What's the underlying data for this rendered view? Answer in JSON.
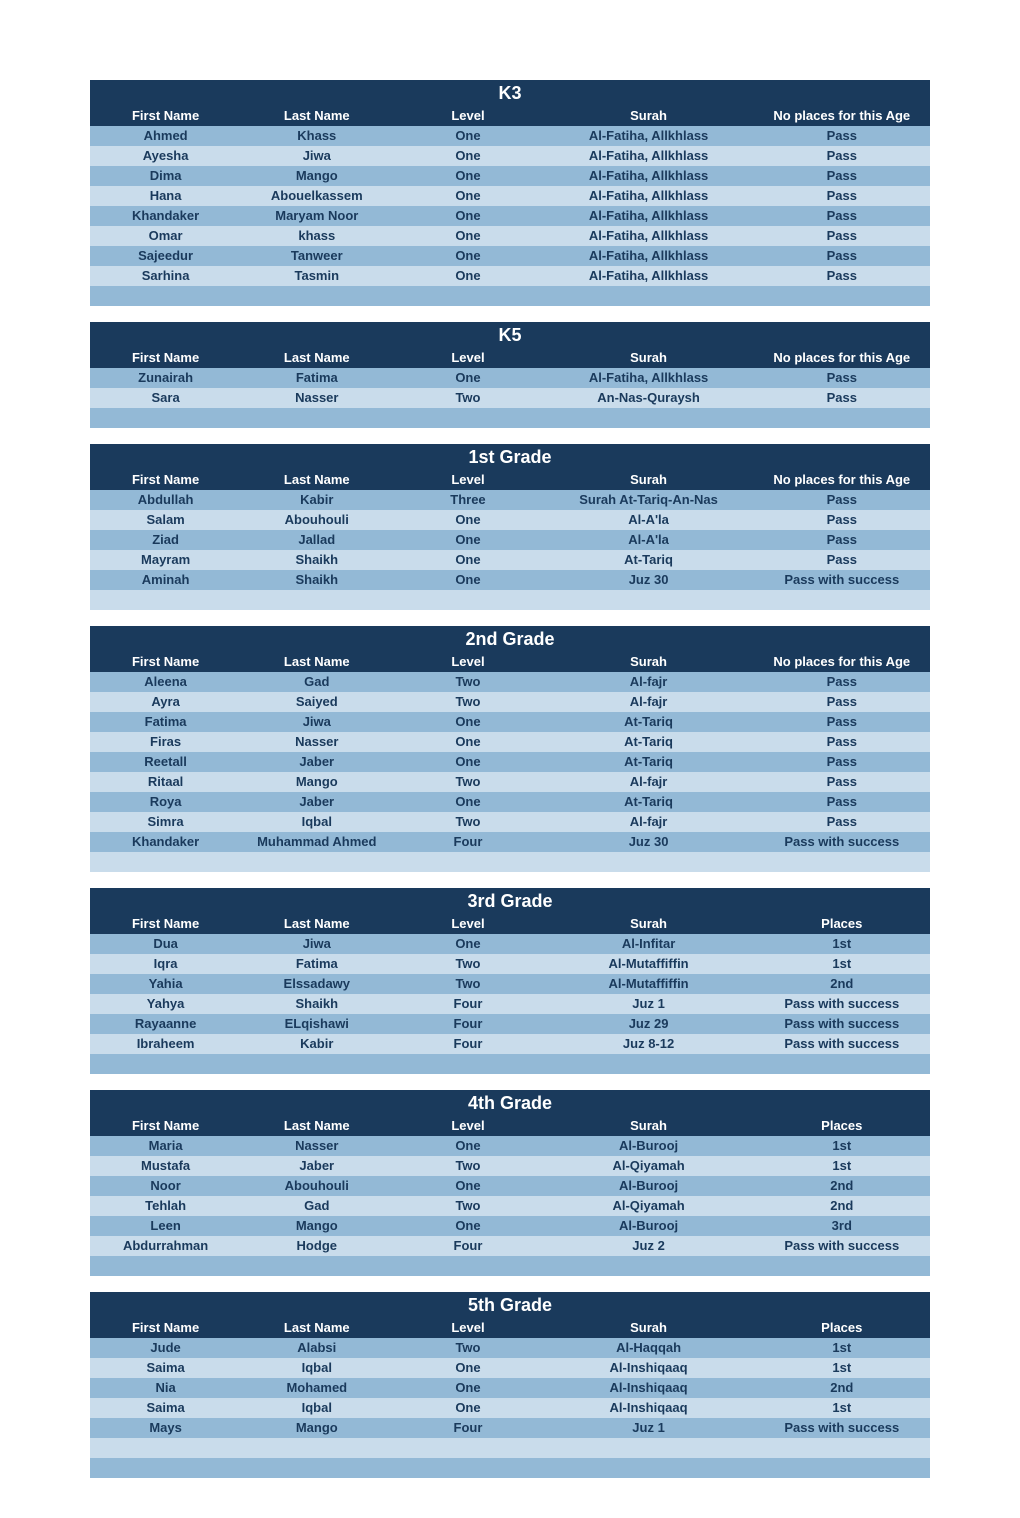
{
  "colors": {
    "header_bg": "#1a3a5c",
    "header_fg": "#ffffff",
    "row_light": "#c9dceb",
    "row_med": "#93b9d6",
    "text": "#1a3a5c"
  },
  "columns_default": [
    "First Name",
    "Last Name",
    "Level",
    "Surah"
  ],
  "sections": [
    {
      "title": "K3",
      "col5": "No places for this Age",
      "rows": [
        [
          "Ahmed",
          "Khass",
          "One",
          "Al-Fatiha, Allkhlass",
          "Pass"
        ],
        [
          "Ayesha",
          "Jiwa",
          "One",
          "Al-Fatiha, Allkhlass",
          "Pass"
        ],
        [
          "Dima",
          "Mango",
          "One",
          "Al-Fatiha, Allkhlass",
          "Pass"
        ],
        [
          "Hana",
          "Abouelkassem",
          "One",
          "Al-Fatiha, Allkhlass",
          "Pass"
        ],
        [
          "Khandaker",
          "Maryam Noor",
          "One",
          "Al-Fatiha, Allkhlass",
          "Pass"
        ],
        [
          "Omar",
          "khass",
          "One",
          "Al-Fatiha, Allkhlass",
          "Pass"
        ],
        [
          "Sajeedur",
          "Tanweer",
          "One",
          "Al-Fatiha, Allkhlass",
          "Pass"
        ],
        [
          "Sarhina",
          "Tasmin",
          "One",
          "Al-Fatiha, Allkhlass",
          "Pass"
        ]
      ]
    },
    {
      "title": "K5",
      "col5": "No places for this Age",
      "rows": [
        [
          "Zunairah",
          "Fatima",
          "One",
          "Al-Fatiha, Allkhlass",
          "Pass"
        ],
        [
          "Sara",
          "Nasser",
          "Two",
          "An-Nas-Quraysh",
          "Pass"
        ]
      ]
    },
    {
      "title": "1st Grade",
      "col5": "No places for this Age",
      "rows": [
        [
          "Abdullah",
          "Kabir",
          "Three",
          "Surah At-Tariq-An-Nas",
          "Pass"
        ],
        [
          "Salam",
          "Abouhouli",
          "One",
          "Al-A'la",
          "Pass"
        ],
        [
          "Ziad",
          "Jallad",
          "One",
          "Al-A'la",
          "Pass"
        ],
        [
          "Mayram",
          "Shaikh",
          "One",
          "At-Tariq",
          "Pass"
        ],
        [
          "Aminah",
          "Shaikh",
          "One",
          "Juz 30",
          "Pass with success"
        ]
      ]
    },
    {
      "title": "2nd Grade",
      "col5": "No places for this Age",
      "rows": [
        [
          "Aleena",
          "Gad",
          "Two",
          "Al-fajr",
          "Pass"
        ],
        [
          "Ayra",
          "Saiyed",
          "Two",
          "Al-fajr",
          "Pass"
        ],
        [
          "Fatima",
          "Jiwa",
          "One",
          "At-Tariq",
          "Pass"
        ],
        [
          "Firas",
          "Nasser",
          "One",
          "At-Tariq",
          "Pass"
        ],
        [
          "Reetall",
          "Jaber",
          "One",
          "At-Tariq",
          "Pass"
        ],
        [
          "Ritaal",
          "Mango",
          "Two",
          "Al-fajr",
          "Pass"
        ],
        [
          "Roya",
          "Jaber",
          "One",
          "At-Tariq",
          "Pass"
        ],
        [
          "Simra",
          "Iqbal",
          "Two",
          "Al-fajr",
          "Pass"
        ],
        [
          "Khandaker",
          "Muhammad Ahmed",
          "Four",
          "Juz 30",
          "Pass with success"
        ]
      ]
    },
    {
      "title": "3rd Grade",
      "col5": "Places",
      "rows": [
        [
          "Dua",
          "Jiwa",
          "One",
          "Al-Infitar",
          "1st"
        ],
        [
          "Iqra",
          "Fatima",
          "Two",
          "Al-Mutaffiffin",
          "1st"
        ],
        [
          "Yahia",
          "Elssadawy",
          "Two",
          "Al-Mutaffiffin",
          "2nd"
        ],
        [
          "Yahya",
          "Shaikh",
          "Four",
          "Juz 1",
          "Pass with success"
        ],
        [
          "Rayaanne",
          "ELqishawi",
          "Four",
          "Juz 29",
          "Pass with success"
        ],
        [
          "Ibraheem",
          "Kabir",
          "Four",
          "Juz 8-12",
          "Pass with success"
        ]
      ]
    },
    {
      "title": "4th Grade",
      "col5": "Places",
      "rows": [
        [
          "Maria",
          "Nasser",
          "One",
          "Al-Burooj",
          "1st"
        ],
        [
          "Mustafa",
          "Jaber",
          "Two",
          "Al-Qiyamah",
          "1st"
        ],
        [
          "Noor",
          "Abouhouli",
          "One",
          "Al-Burooj",
          "2nd"
        ],
        [
          "Tehlah",
          "Gad",
          "Two",
          "Al-Qiyamah",
          "2nd"
        ],
        [
          "Leen",
          "Mango",
          "One",
          "Al-Burooj",
          "3rd"
        ],
        [
          "Abdurrahman",
          "Hodge",
          "Four",
          "Juz 2",
          "Pass with success"
        ]
      ]
    },
    {
      "title": "5th Grade",
      "col5": "Places",
      "rows": [
        [
          "Jude",
          "Alabsi",
          "Two",
          "Al-Haqqah",
          "1st"
        ],
        [
          "Saima",
          "Iqbal",
          "One",
          "Al-Inshiqaaq",
          "1st"
        ],
        [
          "Nia",
          "Mohamed",
          "One",
          "Al-Inshiqaaq",
          "2nd"
        ],
        [
          "Saima",
          "Iqbal",
          "One",
          "Al-Inshiqaaq",
          "1st"
        ],
        [
          "Mays",
          "Mango",
          "Four",
          "Juz 1",
          "Pass with success"
        ]
      ],
      "trailing_spacers": 2
    }
  ]
}
